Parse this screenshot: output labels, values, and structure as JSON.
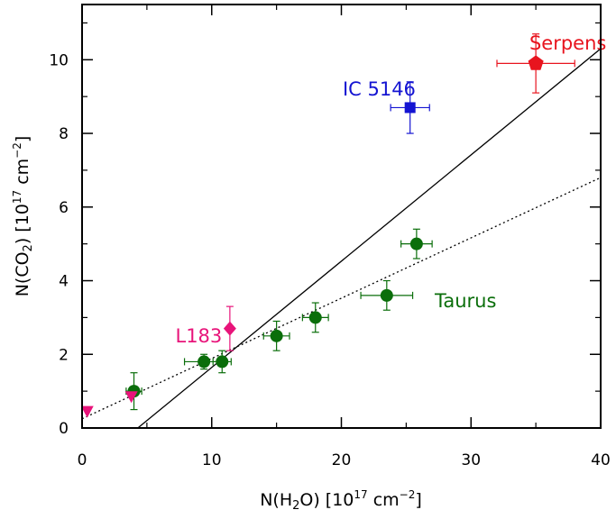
{
  "chart_data": {
    "type": "scatter",
    "title": "",
    "xlabel": {
      "prefix": "N(H",
      "sub": "2",
      "mid": "O)  [10",
      "sup": "17",
      "unit": " cm",
      "unit_sup": "−2",
      "suffix": "]"
    },
    "ylabel": {
      "prefix": "N(CO",
      "sub": "2",
      "mid": ")  [10",
      "sup": "17",
      "unit": " cm",
      "unit_sup": "−2",
      "suffix": "]"
    },
    "xlim": [
      0,
      40
    ],
    "ylim": [
      0,
      11.5
    ],
    "x_ticks": [
      0,
      10,
      20,
      30,
      40
    ],
    "y_ticks": [
      0,
      2,
      4,
      6,
      8,
      10
    ],
    "x_tick_labels": [
      "0",
      "10",
      "20",
      "30",
      "40"
    ],
    "y_tick_labels": [
      "0",
      "2",
      "4",
      "6",
      "8",
      "10"
    ],
    "series": [
      {
        "name": "Taurus",
        "label": "Taurus",
        "color": "#0a6e0a",
        "marker": "circle",
        "points": [
          {
            "x": 4.0,
            "y": 1.0,
            "xerr": 0.6,
            "yerr": 0.5
          },
          {
            "x": 9.4,
            "y": 1.8,
            "xerr": 1.5,
            "yerr": 0.2
          },
          {
            "x": 10.8,
            "y": 1.8,
            "xerr": 0.7,
            "yerr": 0.3
          },
          {
            "x": 15.0,
            "y": 2.5,
            "xerr": 1.0,
            "yerr": 0.4
          },
          {
            "x": 18.0,
            "y": 3.0,
            "xerr": 1.0,
            "yerr": 0.4
          },
          {
            "x": 23.5,
            "y": 3.6,
            "xerr": 2.0,
            "yerr": 0.4
          },
          {
            "x": 25.8,
            "y": 5.0,
            "xerr": 1.2,
            "yerr": 0.4
          }
        ]
      },
      {
        "name": "IC 5146",
        "label": "IC 5146",
        "color": "#1414d2",
        "marker": "square",
        "points": [
          {
            "x": 25.3,
            "y": 8.7,
            "xerr": 1.5,
            "yerr": 0.7
          }
        ]
      },
      {
        "name": "Serpens",
        "label": "Serpens",
        "color": "#e8141e",
        "marker": "pentagon",
        "points": [
          {
            "x": 35.0,
            "y": 9.9,
            "xerr": 3.0,
            "yerr": 0.8
          }
        ]
      },
      {
        "name": "L183",
        "label": "L183",
        "color": "#e8147a",
        "marker": "diamond",
        "points": [
          {
            "x": 11.4,
            "y": 2.7,
            "xerr": 0,
            "yerr": 0.6
          }
        ]
      },
      {
        "name": "upper-limits",
        "label": "",
        "color": "#e8147a",
        "marker": "triangle-down",
        "points": [
          {
            "x": 0.4,
            "y": 0.45
          },
          {
            "x": 3.8,
            "y": 0.85
          }
        ]
      }
    ],
    "fit_lines": [
      {
        "name": "solid-fit",
        "style": "solid",
        "color": "#000000",
        "from": [
          4.3,
          0.0
        ],
        "to": [
          40.0,
          10.3
        ]
      },
      {
        "name": "dotted-fit",
        "style": "dotted",
        "color": "#000000",
        "from": [
          0.0,
          0.25
        ],
        "to": [
          40.0,
          6.8
        ]
      }
    ],
    "annotations": [
      {
        "name": "label-serpens",
        "text": "Serpens",
        "color": "#e8141e",
        "x": 34.5,
        "y": 10.45
      },
      {
        "name": "label-ic5146",
        "text": "IC 5146",
        "color": "#1414d2",
        "x": 20.1,
        "y": 9.2
      },
      {
        "name": "label-l183",
        "text": "L183",
        "color": "#e8147a",
        "x": 7.2,
        "y": 2.5
      },
      {
        "name": "label-taurus",
        "text": "Taurus",
        "color": "#0a6e0a",
        "x": 27.2,
        "y": 3.45
      }
    ],
    "grid": false,
    "legend": "none"
  }
}
